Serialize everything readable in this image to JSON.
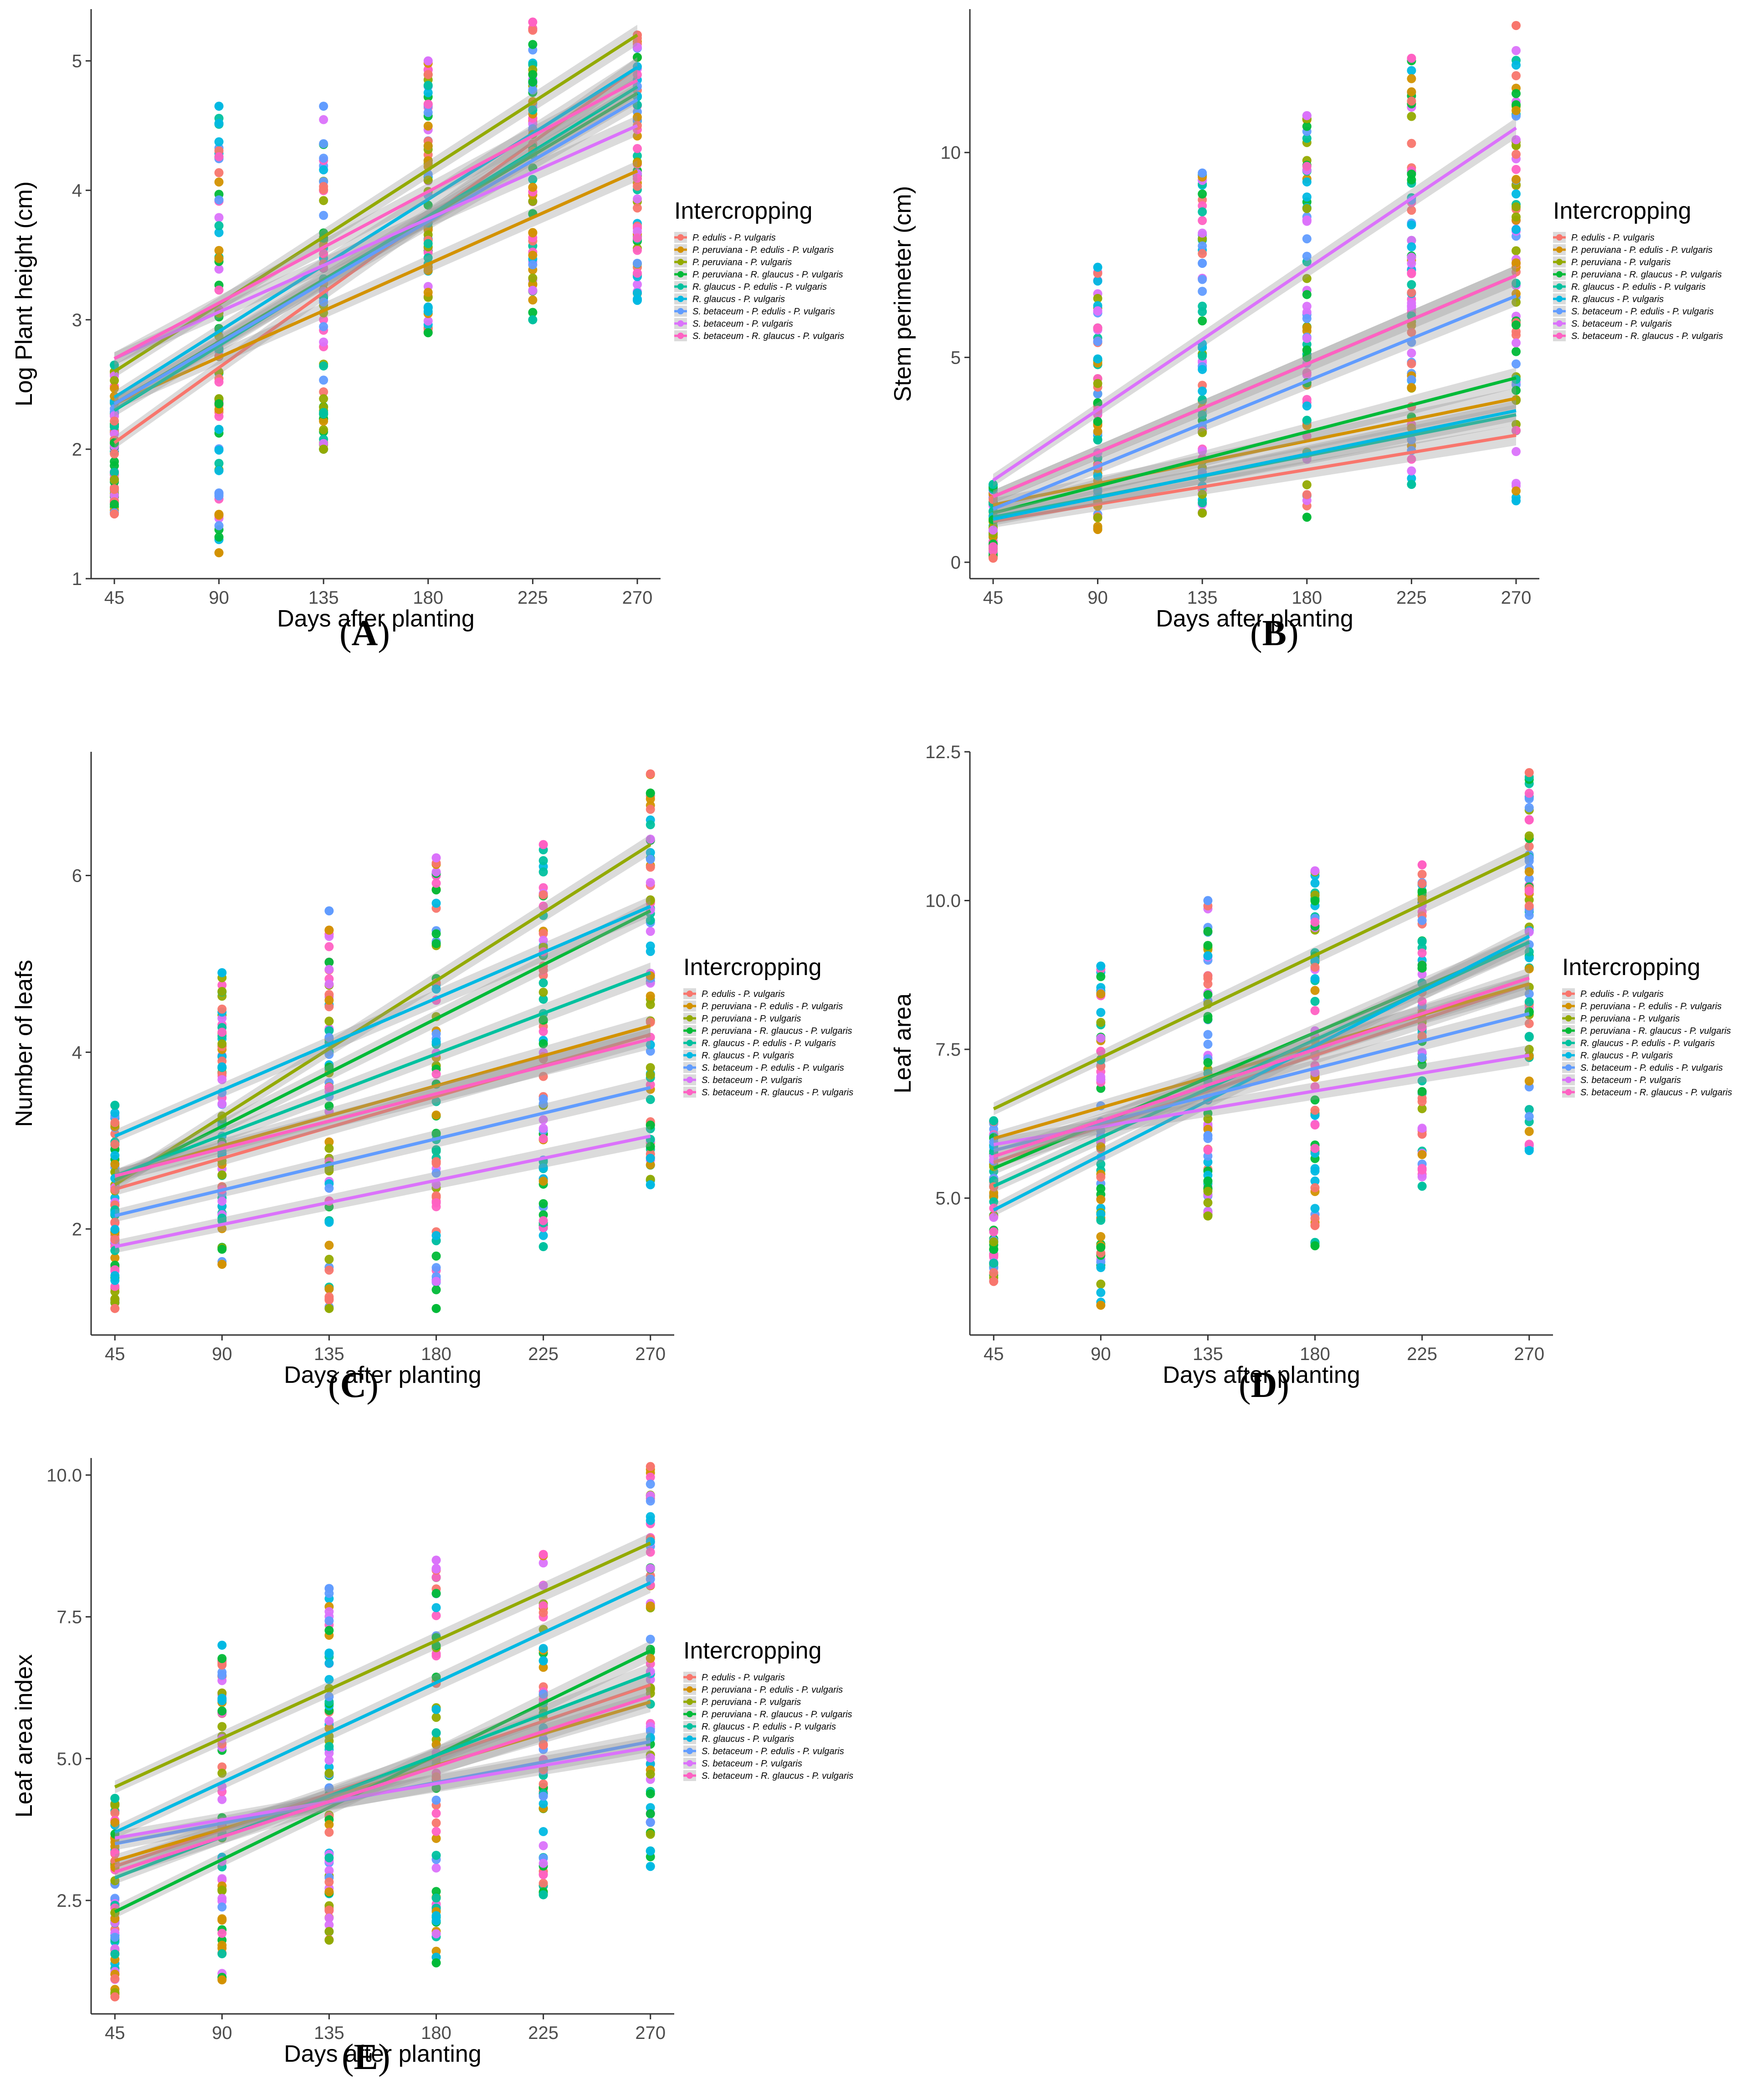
{
  "legend": {
    "title": "Intercropping",
    "entries": [
      {
        "name": "P. edulis - P. vulgaris",
        "color": "#F8766D"
      },
      {
        "name": "P. peruviana - P. edulis - P. vulgaris",
        "color": "#D39200"
      },
      {
        "name": "P. peruviana - P. vulgaris",
        "color": "#93AA00"
      },
      {
        "name": "P. peruviana - R. glaucus - P. vulgaris",
        "color": "#00BA38"
      },
      {
        "name": "R. glaucus - P. edulis - P. vulgaris",
        "color": "#00C19F"
      },
      {
        "name": "R. glaucus - P. vulgaris",
        "color": "#00B9E3"
      },
      {
        "name": "S. betaceum - P. edulis - P. vulgaris",
        "color": "#619CFF"
      },
      {
        "name": "S. betaceum - P. vulgaris",
        "color": "#DB72FB"
      },
      {
        "name": "S. betaceum - R. glaucus - P. vulgaris",
        "color": "#FF61C3"
      }
    ]
  },
  "chart_data": [
    {
      "id": "A",
      "panel_label": "A",
      "type": "scatter",
      "xlabel": "Days after planting",
      "ylabel": "Log Plant height (cm)",
      "x": [
        45,
        90,
        135,
        180,
        225,
        270
      ],
      "ylim": [
        1,
        5.4
      ],
      "yticks": [
        1,
        2,
        3,
        4,
        5
      ],
      "fits": [
        {
          "series": "P. edulis - P. vulgaris",
          "start": 2.05,
          "end": 4.95
        },
        {
          "series": "P. peruviana - P. edulis - P. vulgaris",
          "start": 2.35,
          "end": 4.15
        },
        {
          "series": "P. peruviana - P. vulgaris",
          "start": 2.6,
          "end": 5.2
        },
        {
          "series": "P. peruviana - R. glaucus - P. vulgaris",
          "start": 2.35,
          "end": 4.75
        },
        {
          "series": "R. glaucus - P. edulis - P. vulgaris",
          "start": 2.3,
          "end": 4.8
        },
        {
          "series": "R. glaucus - P. vulgaris",
          "start": 2.4,
          "end": 4.95
        },
        {
          "series": "S. betaceum - P. edulis - P. vulgaris",
          "start": 2.35,
          "end": 4.7
        },
        {
          "series": "S. betaceum - P. vulgaris",
          "start": 2.7,
          "end": 4.5
        },
        {
          "series": "S. betaceum - R. glaucus - P. vulgaris",
          "start": 2.7,
          "end": 4.85
        }
      ],
      "points": [
        {
          "x": 45,
          "min": 1.5,
          "max": 2.65
        },
        {
          "x": 90,
          "min": 1.2,
          "max": 4.65
        },
        {
          "x": 135,
          "min": 2.0,
          "max": 4.65
        },
        {
          "x": 180,
          "min": 2.9,
          "max": 5.0
        },
        {
          "x": 225,
          "min": 3.0,
          "max": 5.3
        },
        {
          "x": 270,
          "min": 3.15,
          "max": 5.2
        }
      ]
    },
    {
      "id": "B",
      "panel_label": "B",
      "type": "scatter",
      "xlabel": "Days after planting",
      "ylabel": "Stem perimeter (cm)",
      "x": [
        45,
        90,
        135,
        180,
        225,
        270
      ],
      "ylim": [
        -0.4,
        13.5
      ],
      "yticks": [
        0,
        5,
        10
      ],
      "fits": [
        {
          "series": "P. edulis - P. vulgaris",
          "start": 1.0,
          "end": 3.1
        },
        {
          "series": "P. peruviana - P. edulis - P. vulgaris",
          "start": 1.4,
          "end": 4.0
        },
        {
          "series": "P. peruviana - P. vulgaris",
          "start": 1.6,
          "end": 7.0
        },
        {
          "series": "P. peruviana - R. glaucus - P. vulgaris",
          "start": 1.2,
          "end": 4.5
        },
        {
          "series": "R. glaucus - P. edulis - P. vulgaris",
          "start": 1.1,
          "end": 3.6
        },
        {
          "series": "R. glaucus - P. vulgaris",
          "start": 1.05,
          "end": 3.7
        },
        {
          "series": "S. betaceum - P. edulis - P. vulgaris",
          "start": 1.3,
          "end": 6.5
        },
        {
          "series": "S. betaceum - P. vulgaris",
          "start": 2.0,
          "end": 10.6
        },
        {
          "series": "S. betaceum - R. glaucus - P. vulgaris",
          "start": 1.6,
          "end": 7.0
        }
      ],
      "points": [
        {
          "x": 45,
          "min": 0.1,
          "max": 1.9
        },
        {
          "x": 90,
          "min": 0.8,
          "max": 7.2
        },
        {
          "x": 135,
          "min": 1.2,
          "max": 9.5
        },
        {
          "x": 180,
          "min": 1.1,
          "max": 10.9
        },
        {
          "x": 225,
          "min": 1.9,
          "max": 12.3
        },
        {
          "x": 270,
          "min": 1.5,
          "max": 13.1
        }
      ]
    },
    {
      "id": "C",
      "panel_label": "C",
      "type": "scatter",
      "xlabel": "Days after planting",
      "ylabel": "Number of leafs",
      "x": [
        45,
        90,
        135,
        180,
        225,
        270
      ],
      "ylim": [
        0.8,
        7.4
      ],
      "yticks": [
        2,
        4,
        6
      ],
      "fits": [
        {
          "series": "P. edulis - P. vulgaris",
          "start": 2.45,
          "end": 4.2
        },
        {
          "series": "P. peruviana - P. edulis - P. vulgaris",
          "start": 2.6,
          "end": 4.3
        },
        {
          "series": "P. peruviana - P. vulgaris",
          "start": 2.5,
          "end": 6.35
        },
        {
          "series": "P. peruviana - R. glaucus - P. vulgaris",
          "start": 2.55,
          "end": 5.6
        },
        {
          "series": "R. glaucus - P. edulis - P. vulgaris",
          "start": 2.6,
          "end": 4.9
        },
        {
          "series": "R. glaucus - P. vulgaris",
          "start": 3.05,
          "end": 5.65
        },
        {
          "series": "S. betaceum - P. edulis - P. vulgaris",
          "start": 2.15,
          "end": 3.6
        },
        {
          "series": "S. betaceum - P. vulgaris",
          "start": 1.8,
          "end": 3.05
        },
        {
          "series": "S. betaceum - R. glaucus - P. vulgaris",
          "start": 2.6,
          "end": 4.15
        }
      ],
      "points": [
        {
          "x": 45,
          "min": 1.1,
          "max": 3.4
        },
        {
          "x": 90,
          "min": 1.6,
          "max": 4.9
        },
        {
          "x": 135,
          "min": 1.1,
          "max": 5.6
        },
        {
          "x": 180,
          "min": 1.1,
          "max": 6.2
        },
        {
          "x": 225,
          "min": 1.8,
          "max": 6.35
        },
        {
          "x": 270,
          "min": 2.5,
          "max": 7.15
        }
      ]
    },
    {
      "id": "D",
      "panel_label": "D",
      "type": "scatter",
      "xlabel": "Days after planting",
      "ylabel": "Leaf area",
      "x": [
        45,
        90,
        135,
        180,
        225,
        270
      ],
      "ylim": [
        2.7,
        12.5
      ],
      "yticks": [
        5.0,
        7.5,
        10.0,
        12.5
      ],
      "yticklabels": [
        "5.0",
        "7.5",
        "10.0",
        "12.5"
      ],
      "fits": [
        {
          "series": "P. edulis - P. vulgaris",
          "start": 5.6,
          "end": 8.6
        },
        {
          "series": "P. peruviana - P. edulis - P. vulgaris",
          "start": 6.0,
          "end": 8.6
        },
        {
          "series": "P. peruviana - P. vulgaris",
          "start": 6.5,
          "end": 10.8
        },
        {
          "series": "P. peruviana - R. glaucus - P. vulgaris",
          "start": 5.5,
          "end": 9.3
        },
        {
          "series": "R. glaucus - P. edulis - P. vulgaris",
          "start": 5.2,
          "end": 9.3
        },
        {
          "series": "R. glaucus - P. vulgaris",
          "start": 4.8,
          "end": 9.4
        },
        {
          "series": "S. betaceum - P. edulis - P. vulgaris",
          "start": 5.8,
          "end": 8.1
        },
        {
          "series": "S. betaceum - P. vulgaris",
          "start": 5.9,
          "end": 7.4
        },
        {
          "series": "S. betaceum - R. glaucus - P. vulgaris",
          "start": 5.7,
          "end": 8.7
        }
      ],
      "points": [
        {
          "x": 45,
          "min": 3.6,
          "max": 6.3
        },
        {
          "x": 90,
          "min": 3.2,
          "max": 8.9
        },
        {
          "x": 135,
          "min": 4.7,
          "max": 10.0
        },
        {
          "x": 180,
          "min": 4.2,
          "max": 10.5
        },
        {
          "x": 225,
          "min": 5.2,
          "max": 10.6
        },
        {
          "x": 270,
          "min": 5.8,
          "max": 12.15
        }
      ]
    },
    {
      "id": "E",
      "panel_label": "E",
      "type": "scatter",
      "xlabel": "Days after planting",
      "ylabel": "Leaf area index",
      "x": [
        45,
        90,
        135,
        180,
        225,
        270
      ],
      "ylim": [
        0.5,
        10.3
      ],
      "yticks": [
        2.5,
        5.0,
        7.5,
        10.0
      ],
      "yticklabels": [
        "2.5",
        "5.0",
        "7.5",
        "10.0"
      ],
      "fits": [
        {
          "series": "P. edulis - P. vulgaris",
          "start": 3.1,
          "end": 6.3
        },
        {
          "series": "P. peruviana - P. edulis - P. vulgaris",
          "start": 3.2,
          "end": 6.0
        },
        {
          "series": "P. peruviana - P. vulgaris",
          "start": 4.5,
          "end": 8.8
        },
        {
          "series": "P. peruviana - R. glaucus - P. vulgaris",
          "start": 2.3,
          "end": 6.9
        },
        {
          "series": "R. glaucus - P. edulis - P. vulgaris",
          "start": 2.9,
          "end": 6.5
        },
        {
          "series": "R. glaucus - P. vulgaris",
          "start": 3.7,
          "end": 8.1
        },
        {
          "series": "S. betaceum - P. edulis - P. vulgaris",
          "start": 3.5,
          "end": 5.3
        },
        {
          "series": "S. betaceum - P. vulgaris",
          "start": 3.6,
          "end": 5.2
        },
        {
          "series": "S. betaceum - R. glaucus - P. vulgaris",
          "start": 3.0,
          "end": 6.1
        }
      ],
      "points": [
        {
          "x": 45,
          "min": 0.8,
          "max": 4.3
        },
        {
          "x": 90,
          "min": 1.1,
          "max": 7.0
        },
        {
          "x": 135,
          "min": 1.8,
          "max": 8.0
        },
        {
          "x": 180,
          "min": 1.4,
          "max": 8.5
        },
        {
          "x": 225,
          "min": 2.6,
          "max": 8.6
        },
        {
          "x": 270,
          "min": 3.1,
          "max": 10.15
        }
      ]
    }
  ]
}
